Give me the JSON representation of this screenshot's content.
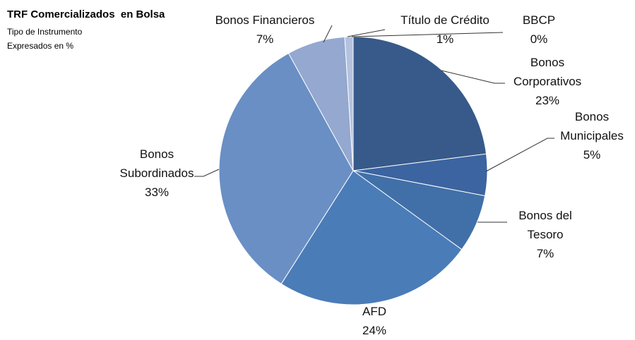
{
  "chart_data": {
    "type": "pie",
    "title": "TRF Comercializados  en Bolsa",
    "subtitle": "Tipo de Instrumento",
    "subtitle2": "Expresados en %",
    "categories": [
      "Bonos Corporativos",
      "Bonos Municipales",
      "Bonos del Tesoro",
      "AFD",
      "Bonos Subordinados",
      "Bonos Financieros",
      "Título de Crédito",
      "BBCP"
    ],
    "values": [
      23,
      5,
      7,
      24,
      33,
      7,
      1,
      0
    ],
    "value_labels": [
      "23%",
      "5%",
      "7%",
      "24%",
      "33%",
      "7%",
      "1%",
      "0%"
    ],
    "colors": [
      "#375a8a",
      "#3c64a0",
      "#4170a8",
      "#4a7cb8",
      "#6a8fc4",
      "#94a8d0",
      "#b4c2de",
      "#c8d2e8"
    ]
  }
}
